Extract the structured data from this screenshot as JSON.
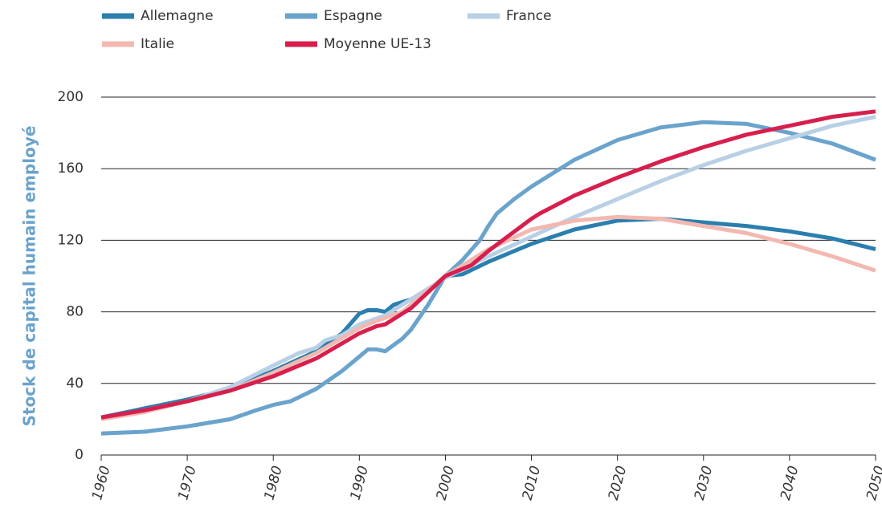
{
  "chart_data": {
    "type": "line",
    "y_label": "Stock de capital humain employé",
    "xlim": [
      1960,
      2050
    ],
    "xticks": [
      1960,
      1970,
      1980,
      1990,
      2000,
      2010,
      2020,
      2030,
      2040,
      2050
    ],
    "ylim": [
      0,
      200
    ],
    "yticks": [
      0,
      40,
      80,
      120,
      160,
      200
    ],
    "grid": true,
    "series": [
      {
        "name": "Allemagne",
        "color": "#2b7fae",
        "x": [
          1960,
          1965,
          1970,
          1975,
          1980,
          1985,
          1988,
          1990,
          1991,
          1992,
          1993,
          1994,
          1996,
          1998,
          2000,
          2002,
          2005,
          2010,
          2015,
          2020,
          2025,
          2030,
          2035,
          2040,
          2045,
          2050
        ],
        "values": [
          21,
          26,
          31,
          37,
          47,
          58,
          68,
          79,
          81,
          81,
          80,
          84,
          87,
          92,
          100,
          101,
          108,
          118,
          126,
          131,
          132,
          130,
          128,
          125,
          121,
          115
        ]
      },
      {
        "name": "Espagne",
        "color": "#6aa3cc",
        "x": [
          1960,
          1965,
          1970,
          1975,
          1978,
          1980,
          1982,
          1985,
          1988,
          1990,
          1991,
          1992,
          1993,
          1995,
          1996,
          1998,
          2000,
          2002,
          2004,
          2005,
          2006,
          2008,
          2010,
          2015,
          2020,
          2025,
          2030,
          2035,
          2040,
          2045,
          2050
        ],
        "values": [
          12,
          13,
          16,
          20,
          25,
          28,
          30,
          37,
          47,
          55,
          59,
          59,
          58,
          65,
          70,
          84,
          100,
          109,
          120,
          128,
          135,
          143,
          150,
          165,
          176,
          183,
          186,
          185,
          180,
          174,
          165
        ]
      },
      {
        "name": "France",
        "color": "#b8d0e6",
        "x": [
          1960,
          1965,
          1970,
          1975,
          1980,
          1983,
          1985,
          1986,
          1988,
          1990,
          1993,
          1995,
          2000,
          2005,
          2010,
          2015,
          2020,
          2025,
          2030,
          2035,
          2040,
          2045,
          2050
        ],
        "values": [
          20,
          25,
          30,
          38,
          50,
          57,
          60,
          64,
          67,
          73,
          78,
          84,
          99,
          111,
          122,
          133,
          143,
          153,
          162,
          170,
          177,
          184,
          189
        ]
      },
      {
        "name": "Italie",
        "color": "#f3b8b0",
        "x": [
          1960,
          1965,
          1970,
          1975,
          1980,
          1985,
          1990,
          1992,
          1995,
          2000,
          2005,
          2010,
          2015,
          2020,
          2025,
          2030,
          2035,
          2040,
          2045,
          2050
        ],
        "values": [
          20,
          24,
          30,
          36,
          46,
          57,
          71,
          75,
          80,
          100,
          115,
          126,
          131,
          133,
          132,
          128,
          124,
          118,
          111,
          103
        ]
      },
      {
        "name": "Moyenne UE-13",
        "color": "#d71f4e",
        "x": [
          1960,
          1965,
          1970,
          1975,
          1980,
          1985,
          1990,
          1992,
          1993,
          1996,
          2000,
          2003,
          2005,
          2010,
          2011,
          2015,
          2020,
          2025,
          2030,
          2035,
          2040,
          2045,
          2050
        ],
        "values": [
          21,
          25,
          30,
          36,
          44,
          54,
          68,
          72,
          73,
          82,
          100,
          106,
          114,
          132,
          135,
          145,
          155,
          164,
          172,
          179,
          184,
          189,
          192
        ]
      }
    ]
  }
}
